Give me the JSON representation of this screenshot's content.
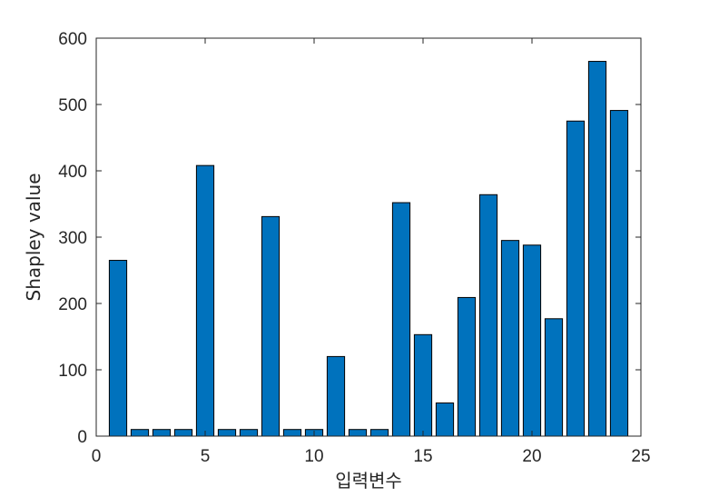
{
  "chart_data": {
    "type": "bar",
    "x": [
      1,
      2,
      3,
      4,
      5,
      6,
      7,
      8,
      9,
      10,
      11,
      12,
      13,
      14,
      15,
      16,
      17,
      18,
      19,
      20,
      21,
      22,
      23,
      24
    ],
    "values": [
      265,
      10,
      10,
      10,
      408,
      10,
      10,
      331,
      10,
      10,
      120,
      10,
      10,
      352,
      153,
      50,
      209,
      364,
      295,
      288,
      177,
      475,
      565,
      491
    ],
    "xlabel": "입력변수",
    "ylabel": "Shapley value",
    "xlim": [
      0,
      25
    ],
    "ylim": [
      0,
      600
    ],
    "xticks": [
      "0",
      "5",
      "10",
      "15",
      "20",
      "25"
    ],
    "yticks": [
      "0",
      "100",
      "200",
      "300",
      "400",
      "500",
      "600"
    ],
    "grid": false,
    "bar_color": "#0072BD",
    "box": true
  }
}
